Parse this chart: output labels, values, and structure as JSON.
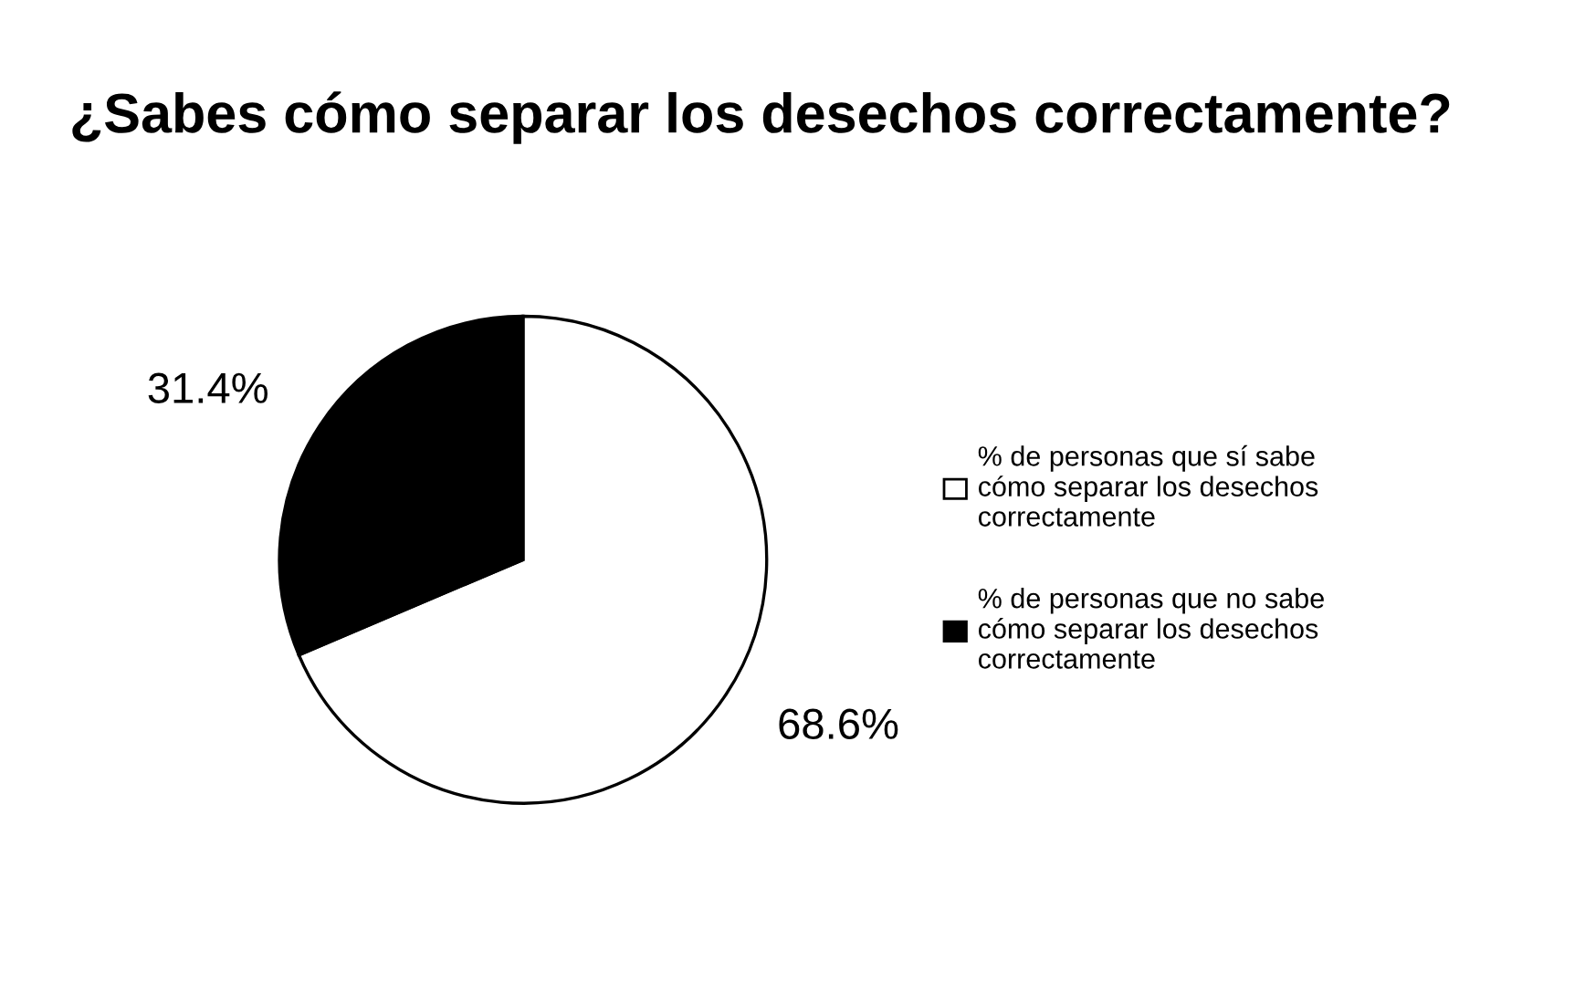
{
  "chart_data": {
    "type": "pie",
    "title": "¿Sabes cómo separar los desechos correctamente?",
    "categories": [
      "% de personas que sí sabe cómo separar los desechos correctamente",
      "% de personas que no sabe cómo separar los desechos correctamente"
    ],
    "values": [
      68.6,
      31.4
    ],
    "value_labels": [
      "68.6%",
      "31.4%"
    ],
    "colors": [
      "#ffffff",
      "#000000"
    ],
    "legend": "right"
  }
}
